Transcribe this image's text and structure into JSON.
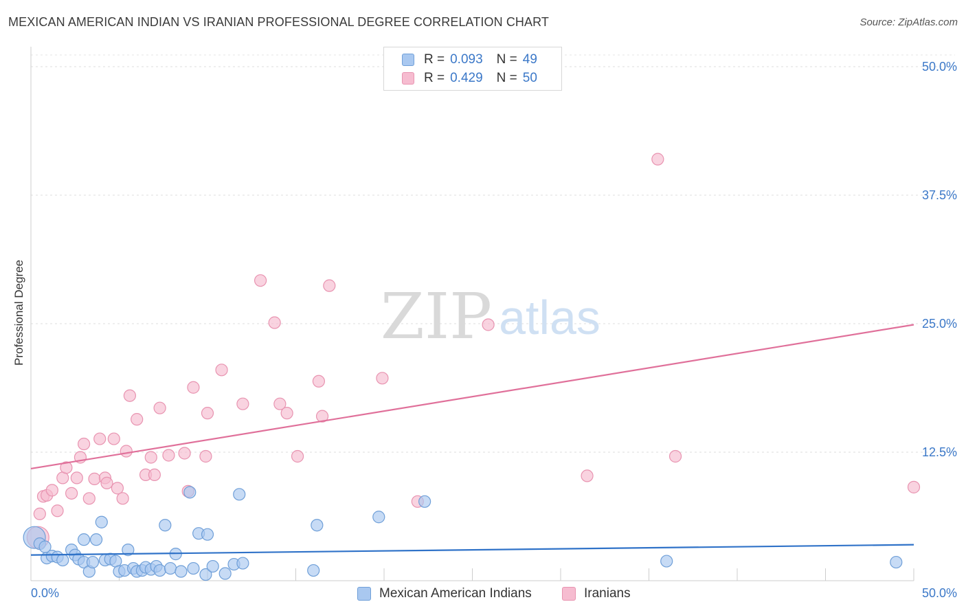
{
  "header": {
    "title": "MEXICAN AMERICAN INDIAN VS IRANIAN PROFESSIONAL DEGREE CORRELATION CHART",
    "source": "Source: ZipAtlas.com"
  },
  "watermark": {
    "part1": "ZIP",
    "part2": "atlas"
  },
  "legend": {
    "rows": [
      {
        "r_label": "R =",
        "r_value": "0.093",
        "n_label": "N =",
        "n_value": "49"
      },
      {
        "r_label": "R =",
        "r_value": "0.429",
        "n_label": "N =",
        "n_value": "50"
      }
    ]
  },
  "bottom_legend": [
    "Mexican American Indians",
    "Iranians"
  ],
  "colors": {
    "blue_fill": "#a9c8f0",
    "blue_stroke": "#6f9fd8",
    "blue_line": "#2f72c8",
    "pink_fill": "#f6bcd0",
    "pink_stroke": "#e893b0",
    "pink_line": "#e0709a",
    "axis_label": "#3b78c8"
  },
  "chart_data": {
    "type": "scatter",
    "title": "MEXICAN AMERICAN INDIAN VS IRANIAN PROFESSIONAL DEGREE CORRELATION CHART",
    "xlabel": "",
    "ylabel": "Professional Degree",
    "xlim": [
      0,
      50
    ],
    "ylim": [
      0,
      50
    ],
    "x_ticks": [
      {
        "value": 0,
        "label": "0.0%"
      },
      {
        "value": 50,
        "label": "50.0%"
      }
    ],
    "y_ticks": [
      {
        "value": 12.5,
        "label": "12.5%"
      },
      {
        "value": 25,
        "label": "25.0%"
      },
      {
        "value": 37.5,
        "label": "37.5%"
      },
      {
        "value": 50,
        "label": "50.0%"
      }
    ],
    "grid": true,
    "series": [
      {
        "name": "Mexican American Indians",
        "color": "blue",
        "R": 0.093,
        "N": 49,
        "trend": {
          "x": [
            0,
            50
          ],
          "y": [
            2.5,
            3.5
          ]
        },
        "points": [
          {
            "x": 0.2,
            "y": 4.2,
            "s": "large"
          },
          {
            "x": 0.5,
            "y": 3.6
          },
          {
            "x": 0.8,
            "y": 3.3
          },
          {
            "x": 0.9,
            "y": 2.2
          },
          {
            "x": 1.2,
            "y": 2.4
          },
          {
            "x": 1.5,
            "y": 2.3
          },
          {
            "x": 1.8,
            "y": 2.0
          },
          {
            "x": 2.3,
            "y": 3.0
          },
          {
            "x": 2.5,
            "y": 2.5
          },
          {
            "x": 2.7,
            "y": 2.1
          },
          {
            "x": 3.0,
            "y": 1.8
          },
          {
            "x": 3.0,
            "y": 4.0
          },
          {
            "x": 3.3,
            "y": 0.9
          },
          {
            "x": 3.5,
            "y": 1.8
          },
          {
            "x": 3.7,
            "y": 4.0
          },
          {
            "x": 4.0,
            "y": 5.7
          },
          {
            "x": 4.2,
            "y": 2.0
          },
          {
            "x": 4.5,
            "y": 2.1
          },
          {
            "x": 4.8,
            "y": 1.9
          },
          {
            "x": 5.0,
            "y": 0.9
          },
          {
            "x": 5.3,
            "y": 1.0
          },
          {
            "x": 5.5,
            "y": 3.0
          },
          {
            "x": 5.8,
            "y": 1.2
          },
          {
            "x": 6.0,
            "y": 0.9
          },
          {
            "x": 6.3,
            "y": 1.0
          },
          {
            "x": 6.5,
            "y": 1.3
          },
          {
            "x": 6.8,
            "y": 1.1
          },
          {
            "x": 7.1,
            "y": 1.4
          },
          {
            "x": 7.3,
            "y": 1.0
          },
          {
            "x": 7.6,
            "y": 5.4
          },
          {
            "x": 7.9,
            "y": 1.2
          },
          {
            "x": 8.2,
            "y": 2.6
          },
          {
            "x": 8.5,
            "y": 0.9
          },
          {
            "x": 9.0,
            "y": 8.6
          },
          {
            "x": 9.2,
            "y": 1.2
          },
          {
            "x": 9.5,
            "y": 4.6
          },
          {
            "x": 9.9,
            "y": 0.6
          },
          {
            "x": 10.0,
            "y": 4.5
          },
          {
            "x": 10.3,
            "y": 1.4
          },
          {
            "x": 11.0,
            "y": 0.7
          },
          {
            "x": 11.5,
            "y": 1.6
          },
          {
            "x": 12.0,
            "y": 1.7
          },
          {
            "x": 11.8,
            "y": 8.4
          },
          {
            "x": 16.0,
            "y": 1.0
          },
          {
            "x": 16.2,
            "y": 5.4
          },
          {
            "x": 19.7,
            "y": 6.2
          },
          {
            "x": 22.3,
            "y": 7.7
          },
          {
            "x": 36.0,
            "y": 1.9
          },
          {
            "x": 49.0,
            "y": 1.8
          }
        ]
      },
      {
        "name": "Iranians",
        "color": "pink",
        "R": 0.429,
        "N": 50,
        "trend": {
          "x": [
            0,
            50
          ],
          "y": [
            10.9,
            24.9
          ]
        },
        "points": [
          {
            "x": 0.4,
            "y": 4.2,
            "s": "large"
          },
          {
            "x": 0.5,
            "y": 6.5
          },
          {
            "x": 0.7,
            "y": 8.2
          },
          {
            "x": 0.9,
            "y": 8.3
          },
          {
            "x": 1.2,
            "y": 8.8
          },
          {
            "x": 1.5,
            "y": 6.8
          },
          {
            "x": 1.8,
            "y": 10.0
          },
          {
            "x": 2.0,
            "y": 11.0
          },
          {
            "x": 2.3,
            "y": 8.5
          },
          {
            "x": 2.6,
            "y": 10.0
          },
          {
            "x": 2.8,
            "y": 12.0
          },
          {
            "x": 3.0,
            "y": 13.3
          },
          {
            "x": 3.3,
            "y": 8.0
          },
          {
            "x": 3.6,
            "y": 9.9
          },
          {
            "x": 3.9,
            "y": 13.8
          },
          {
            "x": 4.2,
            "y": 10.0
          },
          {
            "x": 4.3,
            "y": 9.5
          },
          {
            "x": 4.7,
            "y": 13.8
          },
          {
            "x": 4.9,
            "y": 9.0
          },
          {
            "x": 5.2,
            "y": 8.0
          },
          {
            "x": 5.4,
            "y": 12.6
          },
          {
            "x": 5.6,
            "y": 18.0
          },
          {
            "x": 6.0,
            "y": 15.7
          },
          {
            "x": 6.5,
            "y": 10.3
          },
          {
            "x": 6.8,
            "y": 12.0
          },
          {
            "x": 7.0,
            "y": 10.3
          },
          {
            "x": 7.3,
            "y": 16.8
          },
          {
            "x": 7.8,
            "y": 12.2
          },
          {
            "x": 8.7,
            "y": 12.4
          },
          {
            "x": 8.9,
            "y": 8.7
          },
          {
            "x": 9.2,
            "y": 18.8
          },
          {
            "x": 9.9,
            "y": 12.1
          },
          {
            "x": 10.0,
            "y": 16.3
          },
          {
            "x": 10.8,
            "y": 20.5
          },
          {
            "x": 12.0,
            "y": 17.2
          },
          {
            "x": 13.0,
            "y": 29.2
          },
          {
            "x": 13.8,
            "y": 25.1
          },
          {
            "x": 14.1,
            "y": 17.2
          },
          {
            "x": 14.5,
            "y": 16.3
          },
          {
            "x": 15.1,
            "y": 12.1
          },
          {
            "x": 16.3,
            "y": 19.4
          },
          {
            "x": 16.5,
            "y": 16.0
          },
          {
            "x": 16.9,
            "y": 28.7
          },
          {
            "x": 19.9,
            "y": 19.7
          },
          {
            "x": 21.9,
            "y": 7.7
          },
          {
            "x": 25.9,
            "y": 24.9
          },
          {
            "x": 31.5,
            "y": 10.2
          },
          {
            "x": 35.5,
            "y": 41.0
          },
          {
            "x": 36.5,
            "y": 12.1
          },
          {
            "x": 50.0,
            "y": 9.1
          }
        ]
      }
    ]
  }
}
